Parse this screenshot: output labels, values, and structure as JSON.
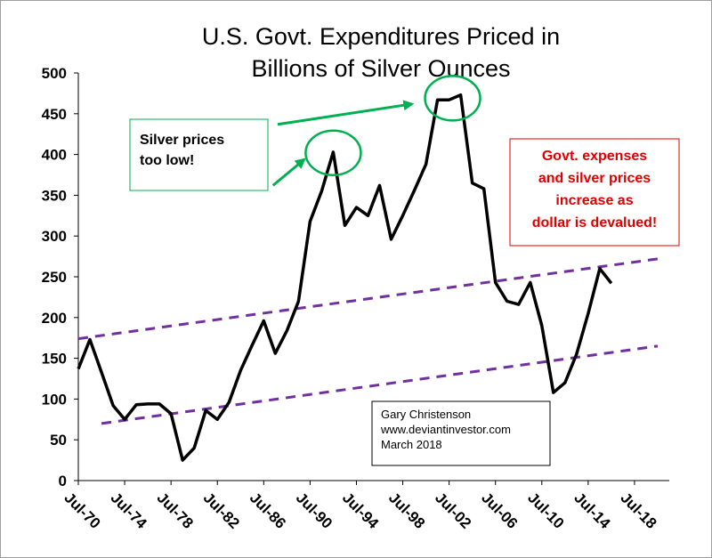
{
  "chart_data": {
    "type": "line",
    "title_lines": [
      "U.S. Govt. Expenditures Priced in",
      "Billions of Silver Ounces"
    ],
    "xlabel": "",
    "ylabel": "",
    "ylim": [
      0,
      500
    ],
    "y_ticks": [
      "0",
      "50",
      "100",
      "150",
      "200",
      "250",
      "300",
      "350",
      "400",
      "450",
      "500"
    ],
    "x_ticks": [
      "Jul-70",
      "Jul-74",
      "Jul-78",
      "Jul-82",
      "Jul-86",
      "Jul-90",
      "Jul-94",
      "Jul-98",
      "Jul-02",
      "Jul-06",
      "Jul-10",
      "Jul-14",
      "Jul-18"
    ],
    "x_range": [
      1970,
      2021
    ],
    "grid": false,
    "series": [
      {
        "color": "#000000",
        "x": [
          1970,
          1971,
          1972,
          1973,
          1974,
          1975,
          1976,
          1977,
          1978,
          1979,
          1980,
          1981,
          1982,
          1983,
          1984,
          1985,
          1986,
          1987,
          1988,
          1989,
          1990,
          1991,
          1992,
          1993,
          1994,
          1995,
          1996,
          1997,
          1998,
          1999,
          2000,
          2001,
          2002,
          2003,
          2004,
          2005,
          2006,
          2007,
          2008,
          2009,
          2010,
          2011,
          2012,
          2013,
          2014,
          2015,
          2016
        ],
        "y": [
          137,
          173,
          133,
          92,
          75,
          93,
          94,
          94,
          82,
          25,
          40,
          86,
          75,
          96,
          135,
          166,
          196,
          156,
          184,
          220,
          318,
          355,
          403,
          313,
          335,
          325,
          362,
          296,
          325,
          356,
          388,
          467,
          467,
          473,
          365,
          358,
          243,
          220,
          216,
          243,
          190,
          108,
          120,
          155,
          205,
          260,
          242
        ]
      }
    ],
    "trend_lines": [
      {
        "color": "#7030a0",
        "x": [
          1970,
          2020
        ],
        "y": [
          174,
          272
        ]
      },
      {
        "color": "#7030a0",
        "x": [
          1972,
          2020
        ],
        "y": [
          70,
          165
        ]
      }
    ],
    "highlight_circles": [
      {
        "color": "#00b050",
        "cx": 1992,
        "cy": 402
      },
      {
        "color": "#00b050",
        "cx": 2002.3,
        "cy": 469
      }
    ],
    "arrows": [
      {
        "color": "#00b050",
        "from": [
          1986.8,
          362
        ],
        "to": [
          1989.5,
          394
        ]
      },
      {
        "color": "#00b050",
        "from": [
          1987.2,
          437
        ],
        "to": [
          1998.8,
          462
        ]
      }
    ]
  },
  "annotations": {
    "silver_note": [
      "Silver prices",
      "too low!"
    ],
    "govt_note": [
      "Govt. expenses",
      "and silver prices",
      "increase as",
      "dollar is devalued!"
    ],
    "credit": [
      "Gary Christenson",
      "www.deviantinvestor.com",
      "March 2018"
    ]
  },
  "colors": {
    "line": "#000000",
    "trend": "#7030a0",
    "highlight": "#00b050",
    "warning": "#e00000"
  }
}
